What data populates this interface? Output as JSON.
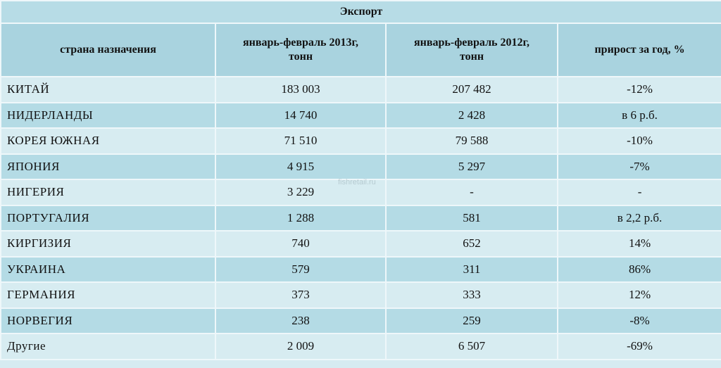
{
  "table": {
    "title": "Экспорт",
    "headers": [
      "страна назначения",
      "январь-февраль 2013г, тонн",
      "январь-февраль 2012г, тонн",
      "прирост за год, %"
    ],
    "rows": [
      [
        "КИТАЙ",
        "183 003",
        "207 482",
        "-12%"
      ],
      [
        "НИДЕРЛАНДЫ",
        "14 740",
        "2 428",
        "в 6 р.б."
      ],
      [
        "КОРЕЯ ЮЖНАЯ",
        "71 510",
        "79 588",
        "-10%"
      ],
      [
        "ЯПОНИЯ",
        "4 915",
        "5 297",
        "-7%"
      ],
      [
        "НИГЕРИЯ",
        "3 229",
        "-",
        "-"
      ],
      [
        "ПОРТУГАЛИЯ",
        "1 288",
        "581",
        "в 2,2 р.б."
      ],
      [
        "КИРГИЗИЯ",
        "740",
        "652",
        "14%"
      ],
      [
        "УКРАИНА",
        "579",
        "311",
        "86%"
      ],
      [
        "ГЕРМАНИЯ",
        "373",
        "333",
        "12%"
      ],
      [
        "НОРВЕГИЯ",
        "238",
        "259",
        "-8%"
      ],
      [
        "Другие",
        "2 009",
        "6 507",
        "-69%"
      ]
    ],
    "watermark": "fishretail.ru"
  }
}
